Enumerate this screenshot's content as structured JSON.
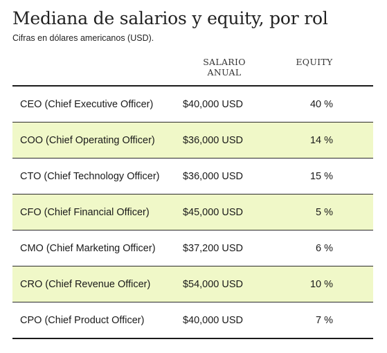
{
  "title": "Mediana de salarios y equity, por rol",
  "subtitle": "Cifras en dólares americanos (USD).",
  "columns": {
    "salary_line1": "SALARIO",
    "salary_line2": "ANUAL",
    "equity": "EQUITY"
  },
  "highlight_color": "#f0f8c8",
  "chart_data": {
    "type": "table",
    "title": "Mediana de salarios y equity, por rol",
    "subtitle": "Cifras en dólares americanos (USD).",
    "columns": [
      "SALARIO ANUAL",
      "EQUITY"
    ],
    "rows": [
      {
        "role": "CEO (Chief Executive Officer)",
        "salary": "$40,000 USD",
        "equity": "40 %",
        "highlighted": false
      },
      {
        "role": "COO (Chief Operating Officer)",
        "salary": "$36,000 USD",
        "equity": "14 %",
        "highlighted": true
      },
      {
        "role": "CTO (Chief Technology Officer)",
        "salary": "$36,000 USD",
        "equity": "15 %",
        "highlighted": false
      },
      {
        "role": "CFO (Chief Financial Officer)",
        "salary": "$45,000 USD",
        "equity": "5 %",
        "highlighted": true
      },
      {
        "role": "CMO (Chief Marketing Officer)",
        "salary": "$37,200 USD",
        "equity": "6 %",
        "highlighted": false
      },
      {
        "role": "CRO (Chief Revenue Officer)",
        "salary": "$54,000 USD",
        "equity": "10 %",
        "highlighted": true
      },
      {
        "role": "CPO (Chief Product Officer)",
        "salary": "$40,000 USD",
        "equity": "7 %",
        "highlighted": false
      }
    ]
  }
}
